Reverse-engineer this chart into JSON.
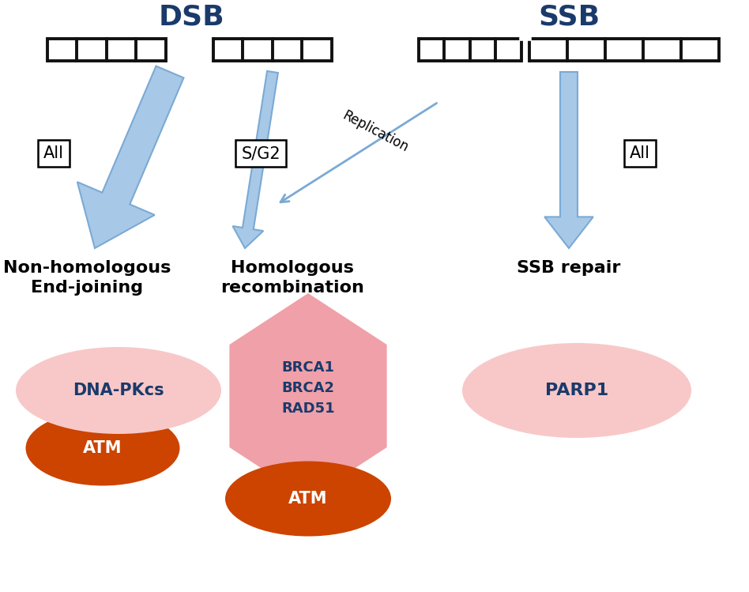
{
  "background_color": "#ffffff",
  "dsb_label": "DSB",
  "ssb_label": "SSB",
  "header_color": "#1a3a6b",
  "arrow_color": "#7aaad4",
  "arrow_fill": "#a8c8e8",
  "dna_color": "#111111",
  "pink_ellipse_color": "#f5b5b5",
  "pink_ellipse_color2": "#f8c8c8",
  "dark_orange_color": "#cc4400",
  "pink_hex_color": "#f0a0a8",
  "gene_text_color": "#1a3a6b",
  "white_text": "#ffffff",
  "replication_text": "Replication",
  "pathway_labels": [
    "Non-homologous\nEnd-joining",
    "Homologous\nrecombination",
    "SSB repair"
  ]
}
